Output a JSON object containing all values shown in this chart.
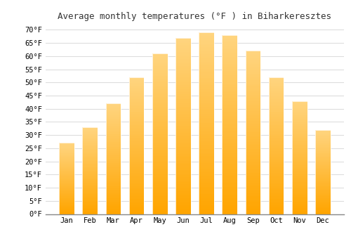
{
  "title": "Average monthly temperatures (°F ) in Biharkeresztes",
  "months": [
    "Jan",
    "Feb",
    "Mar",
    "Apr",
    "May",
    "Jun",
    "Jul",
    "Aug",
    "Sep",
    "Oct",
    "Nov",
    "Dec"
  ],
  "values": [
    27,
    33,
    42,
    52,
    61,
    67,
    69,
    68,
    62,
    52,
    43,
    32
  ],
  "bar_color_top": "#FFD580",
  "bar_color_bottom": "#FFA500",
  "background_color": "#FFFFFF",
  "grid_color": "#DDDDDD",
  "ylim": [
    0,
    72
  ],
  "yticks": [
    0,
    5,
    10,
    15,
    20,
    25,
    30,
    35,
    40,
    45,
    50,
    55,
    60,
    65,
    70
  ],
  "title_fontsize": 9,
  "tick_fontsize": 7.5,
  "bar_width": 0.65
}
